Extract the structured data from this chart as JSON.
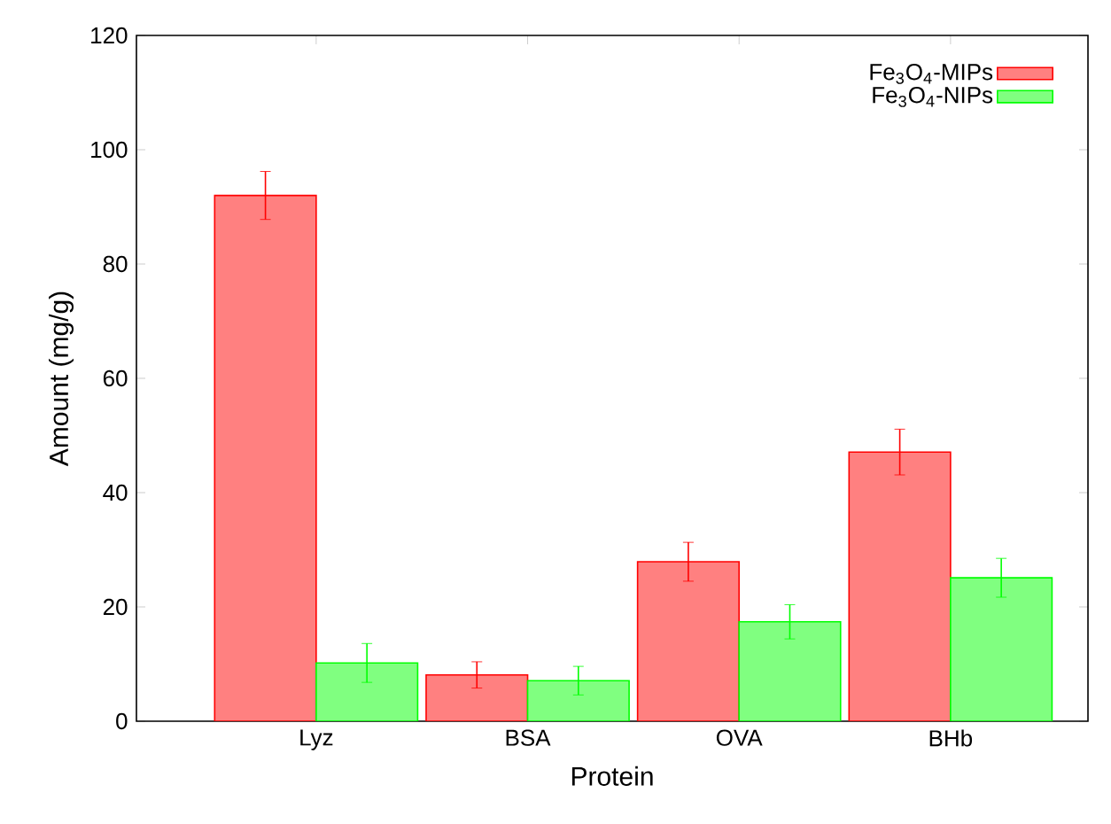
{
  "chart_data": {
    "type": "bar",
    "xlabel": "Protein",
    "ylabel": "Amount (mg/g)",
    "categories": [
      "Lyz",
      "BSA",
      "OVA",
      "BHb"
    ],
    "series": [
      {
        "name": "Fe$_{3}$O$_{4}$-MIPs",
        "color": "#ff8080",
        "values": [
          92,
          8.1,
          27.9,
          47.1
        ],
        "errors": [
          4.2,
          2.3,
          3.4,
          4
        ]
      },
      {
        "name": "Fe$_{3}$O$_{4}$-NIPs",
        "color": "#80ff80",
        "values": [
          10.2,
          7.1,
          17.4,
          25.1
        ],
        "errors": [
          3.4,
          2.5,
          3,
          3.4
        ]
      }
    ],
    "ylim": [
      0,
      120
    ],
    "yticks": [
      0,
      20,
      40,
      60,
      80,
      100,
      120
    ],
    "legend": "top right",
    "grid": false
  }
}
